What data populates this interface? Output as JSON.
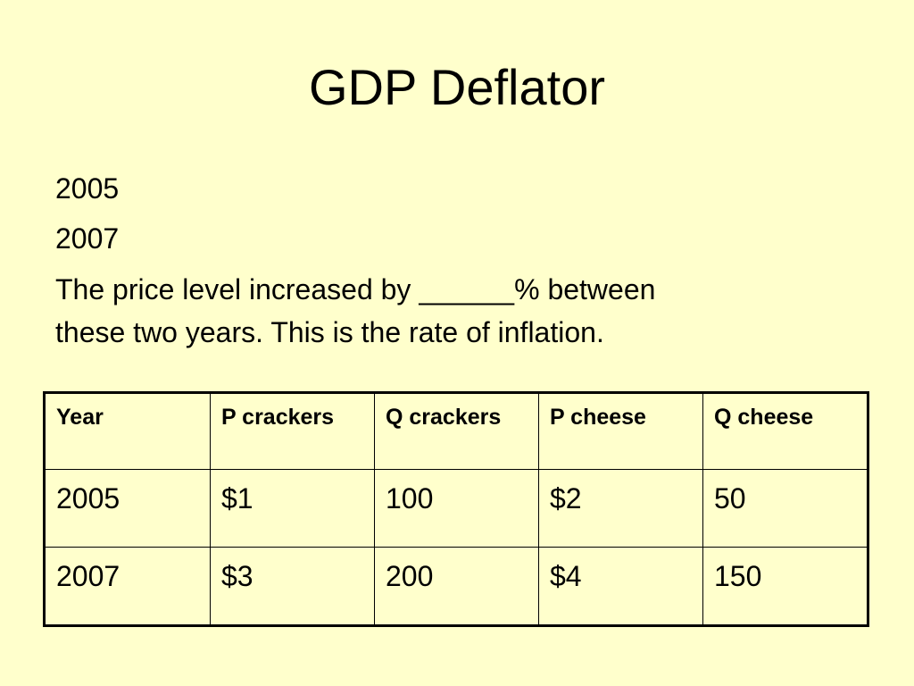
{
  "slide": {
    "title": "GDP Deflator",
    "lines": [
      "2005",
      "2007"
    ],
    "paragraph_line1": "The price level increased by ______% between",
    "paragraph_line2": "these two years.  This is the rate of inflation."
  },
  "table": {
    "headers": [
      "Year",
      "P crackers",
      "Q crackers",
      "P cheese",
      "Q cheese"
    ],
    "rows": [
      [
        "2005",
        "$1",
        "100",
        "$2",
        "50"
      ],
      [
        "2007",
        "$3",
        "200",
        "$4",
        "150"
      ]
    ]
  },
  "colors": {
    "background": "#ffffcc",
    "text": "#000000"
  }
}
